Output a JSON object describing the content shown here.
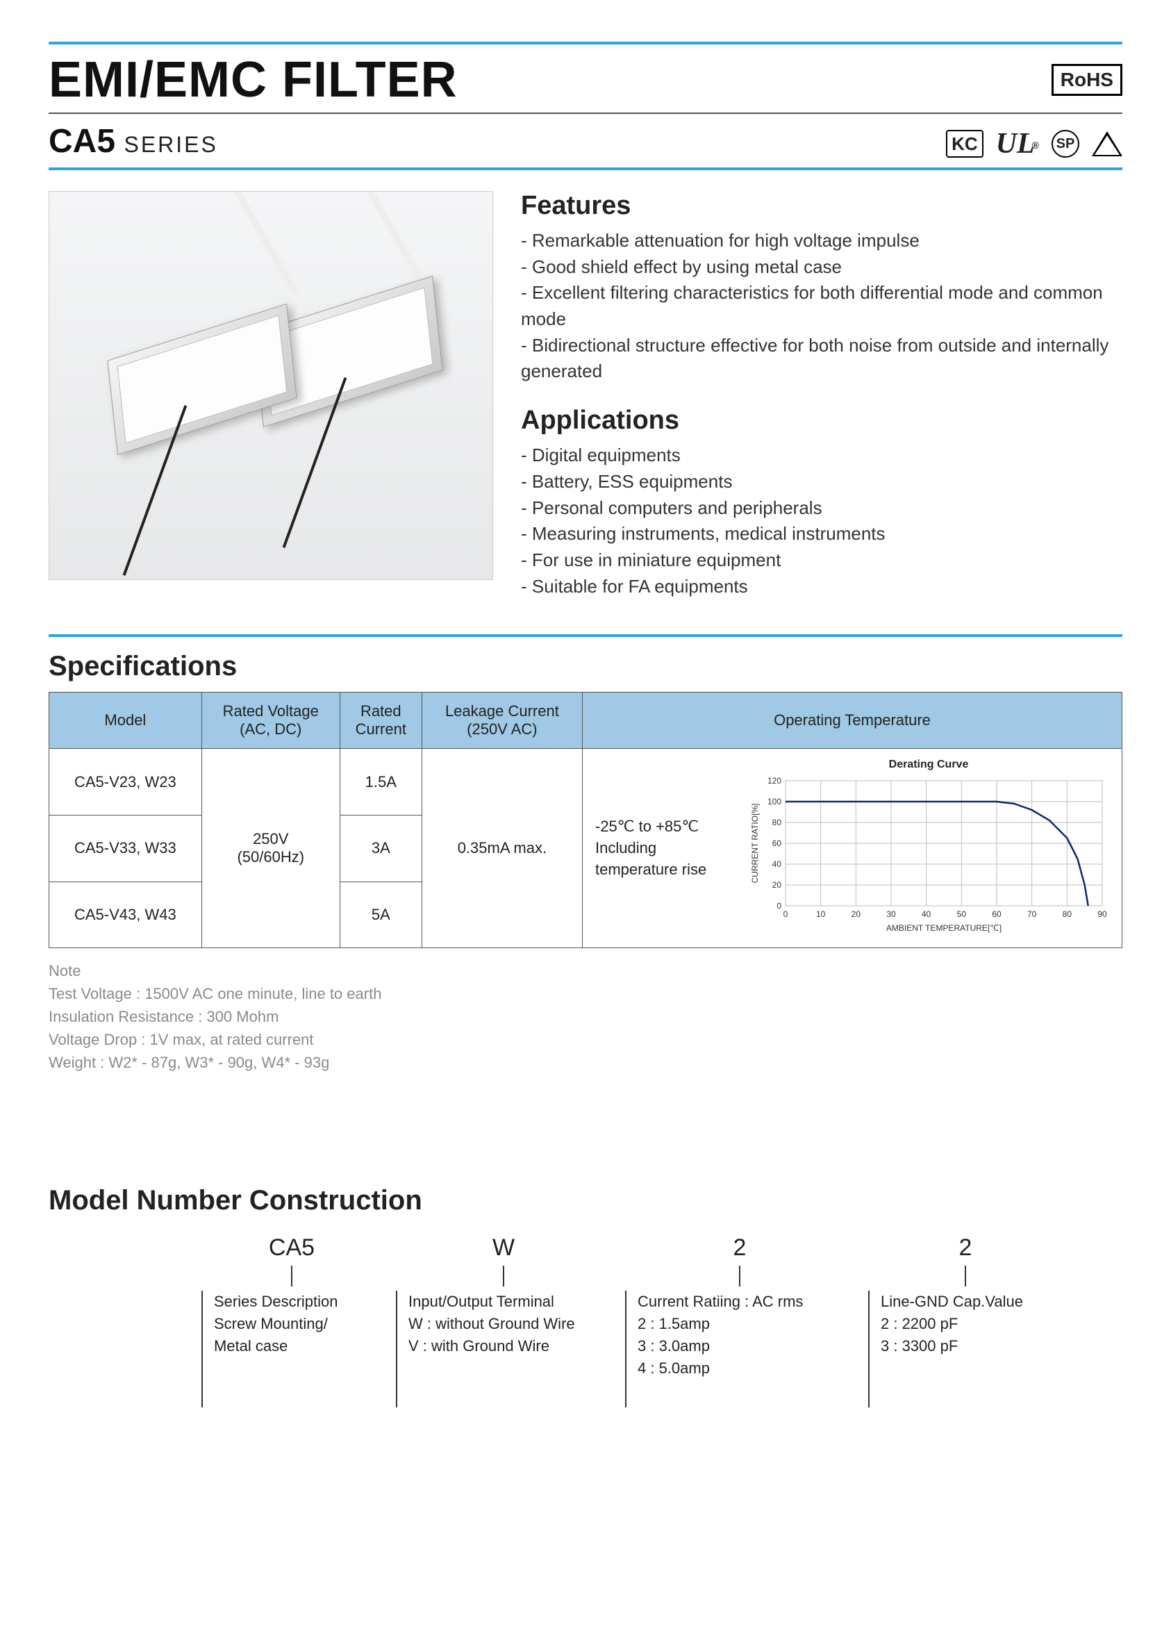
{
  "header": {
    "title": "EMI/EMC FILTER",
    "rohs": "RoHS",
    "series_bold": "CA5",
    "series_label": "SERIES"
  },
  "cert_icons": {
    "kc": "KC",
    "ul": "UL",
    "csa": "SP",
    "reg": "®"
  },
  "features": {
    "heading": "Features",
    "items": [
      "Remarkable attenuation for high voltage impulse",
      "Good shield effect by using metal case",
      "Excellent filtering characteristics for both differential mode and common mode",
      "Bidirectional structure effective for both noise from outside and internally generated"
    ]
  },
  "applications": {
    "heading": "Applications",
    "items": [
      "Digital equipments",
      "Battery, ESS equipments",
      "Personal computers and peripherals",
      "Measuring instruments, medical instruments",
      "For use in miniature equipment",
      "Suitable for FA equipments"
    ]
  },
  "specs": {
    "heading": "Specifications",
    "columns": [
      "Model",
      "Rated Voltage\n(AC, DC)",
      "Rated\nCurrent",
      "Leakage Current\n(250V AC)",
      "Operating Temperature"
    ],
    "rated_voltage": "250V\n(50/60Hz)",
    "leakage": "0.35mA max.",
    "temp_text": "-25℃ to +85℃\nIncluding\ntemperature rise",
    "rows": [
      {
        "model": "CA5-V23, W23",
        "current": "1.5A"
      },
      {
        "model": "CA5-V33, W33",
        "current": "3A"
      },
      {
        "model": "CA5-V43, W43",
        "current": "5A"
      }
    ]
  },
  "chart": {
    "title": "Derating Curve",
    "x_label": "AMBIENT TEMPERATURE[℃]",
    "y_label": "CURRENT RATIO[%]",
    "x_ticks": [
      0,
      10,
      20,
      30,
      40,
      50,
      60,
      70,
      80,
      90
    ],
    "y_ticks": [
      0,
      20,
      40,
      60,
      80,
      100,
      120
    ],
    "xlim": [
      0,
      90
    ],
    "ylim": [
      0,
      120
    ],
    "points": [
      [
        0,
        100
      ],
      [
        10,
        100
      ],
      [
        20,
        100
      ],
      [
        30,
        100
      ],
      [
        40,
        100
      ],
      [
        50,
        100
      ],
      [
        60,
        100
      ],
      [
        65,
        98
      ],
      [
        70,
        92
      ],
      [
        75,
        82
      ],
      [
        80,
        65
      ],
      [
        83,
        45
      ],
      [
        85,
        20
      ],
      [
        86,
        0
      ]
    ],
    "line_color": "#0a2a6b",
    "grid_color": "#bdbdbd",
    "axis_color": "#333333",
    "background": "#ffffff",
    "label_fontsize": 12,
    "title_fontsize": 16
  },
  "note": {
    "heading": "Note",
    "lines": [
      "Test Voltage : 1500V AC one minute, line to earth",
      "Insulation Resistance : 300 Mohm",
      "Voltage Drop : 1V max, at rated current",
      "Weight : W2* - 87g, W3* - 90g, W4* - 93g"
    ]
  },
  "mnc": {
    "heading": "Model Number Construction",
    "codes": [
      "CA5",
      "W",
      "2",
      "2"
    ],
    "desc": [
      "Series Description\nScrew Mounting/\nMetal case",
      "Input/Output Terminal\nW : without Ground Wire\nV : with Ground Wire",
      "Current Ratiing : AC rms\n2 : 1.5amp\n3 : 3.0amp\n4 : 5.0amp",
      "Line-GND Cap.Value\n2 : 2200 pF\n3 : 3300 pF"
    ]
  },
  "colors": {
    "accent": "#2aa6de",
    "table_header": "#9fc9e5",
    "note_text": "#8a8a8a"
  }
}
